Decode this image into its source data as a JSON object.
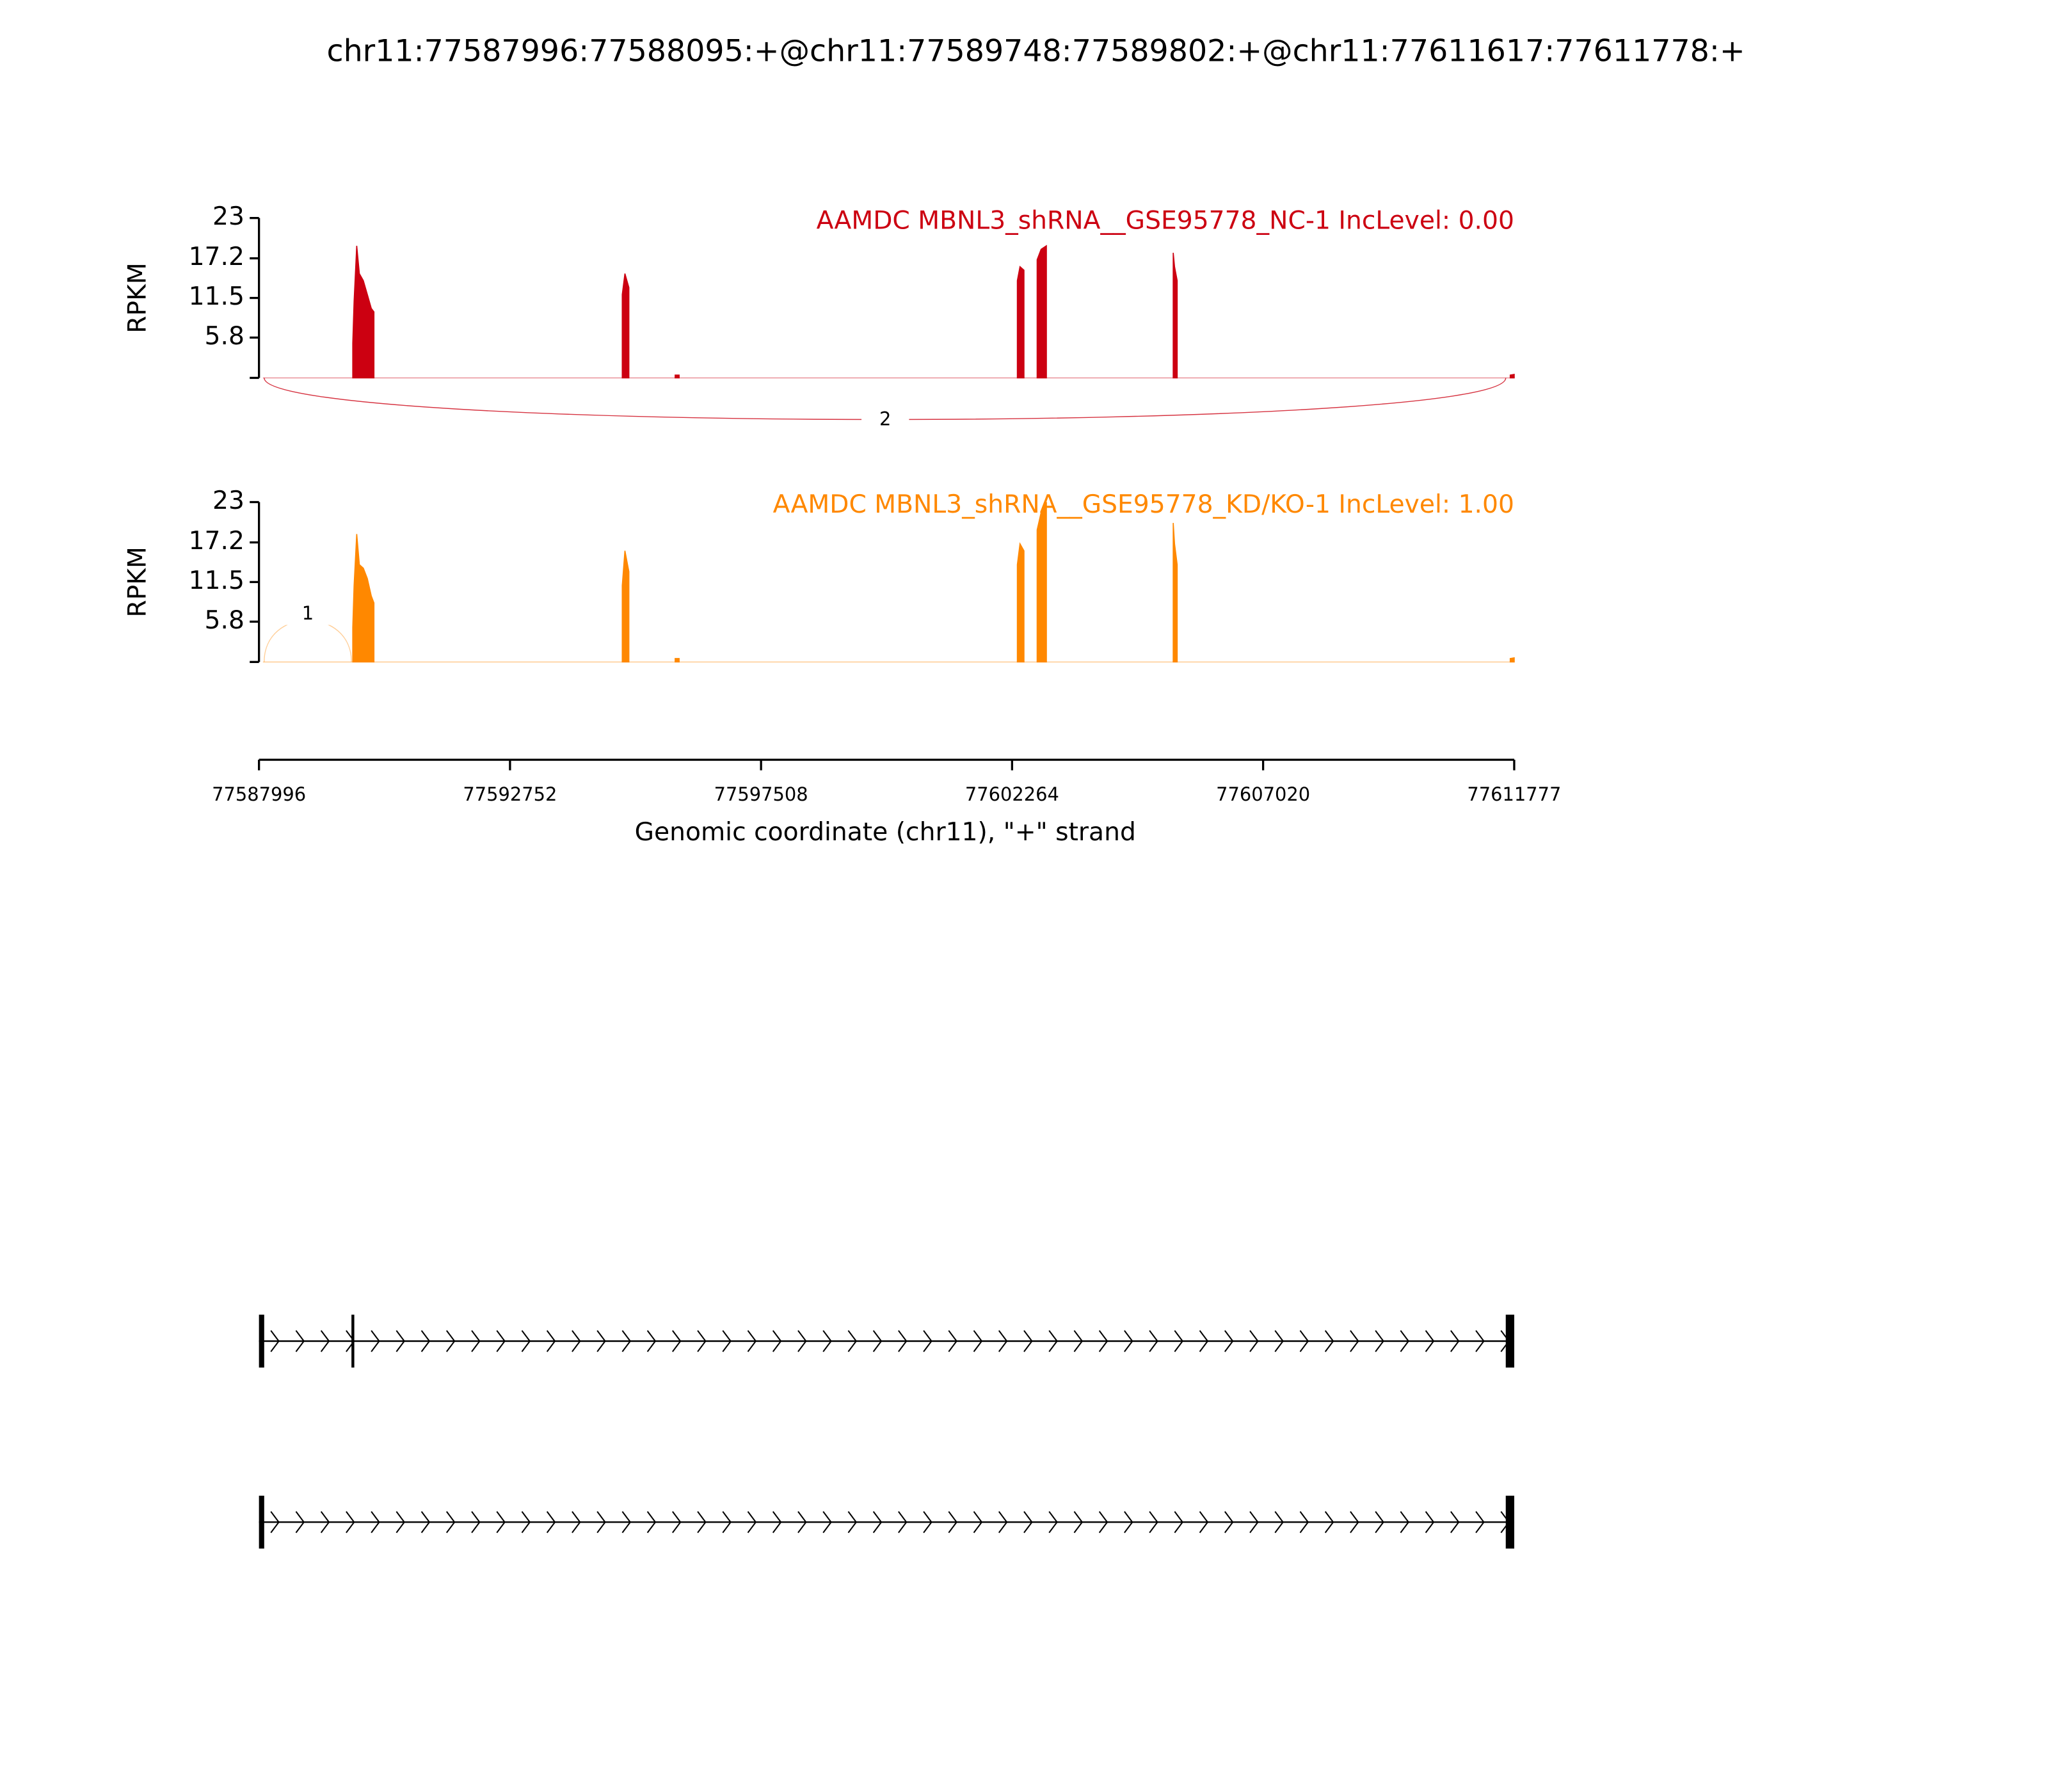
{
  "chart_data": {
    "type": "sashimi",
    "title": "chr11:77587996:77588095:+@chr11:77589748:77589802:+@chr11:77611617:77611778:+",
    "x": [
      77589773,
      77589798,
      77589848,
      77589898,
      77589973,
      77590049,
      77590124,
      77590174,
      null,
      77594879,
      77594929,
      77595004,
      null,
      77595881,
      77595956,
      null,
      77602364,
      77602414,
      77602489,
      null,
      77602739,
      77602814,
      77602914,
      null,
      77605317,
      77605342,
      77605392,
      null,
      77611702,
      77611777
    ],
    "xlim": [
      77587996,
      77611777
    ],
    "xticks": [
      77587996,
      77592752,
      77597508,
      77602264,
      77607020,
      77611777
    ],
    "xlabel": "Genomic coordinate (chr11), \"+\" strand",
    "tracks": [
      {
        "name": "AAMDC MBNL3_shRNA__GSE95778_NC-1 IncLevel: 0.00",
        "color": "#cc0011",
        "ylabel": "RPKM",
        "ylim": [
          0,
          23
        ],
        "yticks": [
          5.8,
          11.5,
          17.2,
          23
        ],
        "values": [
          5,
          11,
          19,
          15,
          14,
          12,
          10,
          9.5,
          null,
          12,
          15,
          13,
          null,
          0.4,
          0.4,
          null,
          14,
          16,
          15.5,
          null,
          17,
          18.5,
          19,
          null,
          18,
          16,
          14,
          null,
          0.4,
          0.5
        ],
        "junctions": [
          {
            "start": 77588095,
            "end": 77611617,
            "count": 2
          }
        ]
      },
      {
        "name": "AAMDC MBNL3_shRNA__GSE95778_KD/KO-1 IncLevel: 1.00",
        "color": "#ff8800",
        "ylabel": "RPKM",
        "ylim": [
          0,
          23
        ],
        "yticks": [
          5.8,
          11.5,
          17.2,
          23
        ],
        "values": [
          5,
          11,
          18.4,
          14,
          13.5,
          12,
          9.5,
          8.5,
          null,
          11,
          16,
          13,
          null,
          0.5,
          0.5,
          null,
          14,
          17,
          16,
          null,
          19,
          21.5,
          23,
          null,
          20,
          17,
          14,
          null,
          0.5,
          0.6
        ],
        "junctions": [
          {
            "start": 77588095,
            "end": 77589748,
            "count": 1
          }
        ]
      }
    ],
    "isoforms": [
      {
        "exons": [
          [
            77587996,
            77588095
          ],
          [
            77589748,
            77589802
          ],
          [
            77611617,
            77611778
          ]
        ]
      },
      {
        "exons": [
          [
            77587996,
            77588095
          ],
          [
            77611617,
            77611778
          ]
        ]
      }
    ]
  }
}
